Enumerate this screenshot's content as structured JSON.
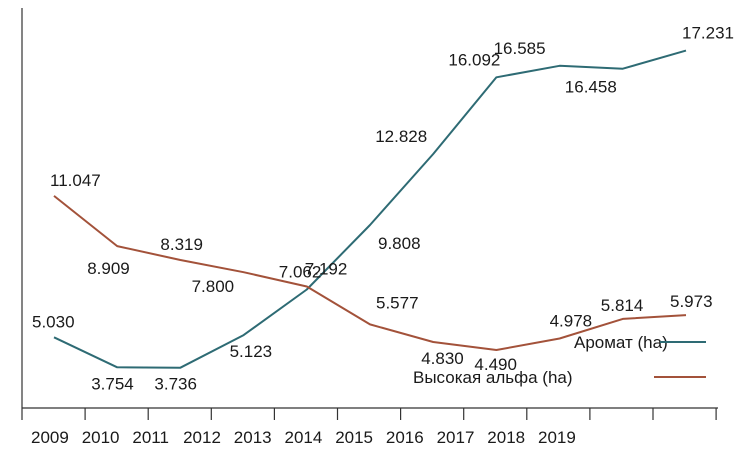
{
  "chart_data": {
    "type": "line",
    "title": "",
    "xlabel": "",
    "ylabel": "",
    "categories": [
      "2009",
      "2010",
      "2011",
      "2012",
      "2013",
      "2014",
      "2015",
      "2016",
      "2017",
      "2018",
      "2019"
    ],
    "grid": false,
    "legend_position": "bottom-right",
    "series": [
      {
        "name": "Аромат (ha)",
        "color": "#2e6b74",
        "x": [
          2009,
          2010,
          2011,
          2012,
          2013,
          2014,
          2015,
          2016,
          2017,
          2018,
          2019
        ],
        "values": [
          5.03,
          3.754,
          3.736,
          5.123,
          7.062,
          9.808,
          12.828,
          16.092,
          16.585,
          16.458,
          17.231
        ],
        "labels": [
          "5.030",
          "3.754",
          "3.736",
          "5.123",
          "7.062",
          "9.808",
          "12.828",
          "16.092",
          "16.585",
          "16.458",
          "17.231"
        ]
      },
      {
        "name": "Высокая альфа (ha)",
        "color": "#a3523a",
        "x": [
          2009,
          2010,
          2011,
          2012,
          2013,
          2014,
          2015,
          2016,
          2017,
          2018,
          2019
        ],
        "values": [
          11.047,
          8.909,
          8.319,
          7.8,
          7.192,
          5.577,
          4.83,
          4.49,
          4.978,
          5.814,
          5.973
        ],
        "labels": [
          "11.047",
          "8.909",
          "8.319",
          "7.800",
          "7.192",
          "5.577",
          "4.830",
          "4.490",
          "4.978",
          "5.814",
          "5.973"
        ]
      }
    ]
  }
}
